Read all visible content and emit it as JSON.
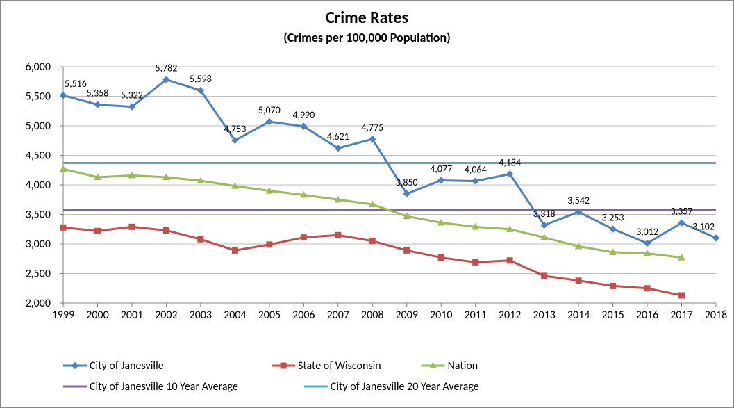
{
  "chart": {
    "type": "line",
    "title": "Crime Rates",
    "subtitle": "(Crimes per 100,000 Population)",
    "title_fontsize": 24,
    "subtitle_fontsize": 18,
    "background_color": "#ffffff",
    "border_color": "#888888",
    "grid_color": "#bfbfbf",
    "axis_line_color": "#808080",
    "tick_label_fontsize": 16,
    "tick_label_color": "#000000",
    "data_label_fontsize": 14,
    "data_label_color": "#000000",
    "xlim": [
      "1999",
      "2018"
    ],
    "ylim": [
      2000,
      6000
    ],
    "ytick_step": 500,
    "yticks": [
      2000,
      2500,
      3000,
      3500,
      4000,
      4500,
      5000,
      5500,
      6000
    ],
    "ytick_labels": [
      "2,000",
      "2,500",
      "3,000",
      "3,500",
      "4,000",
      "4,500",
      "5,000",
      "5,500",
      "6,000"
    ],
    "categories": [
      "1999",
      "2000",
      "2001",
      "2002",
      "2003",
      "2004",
      "2005",
      "2006",
      "2007",
      "2008",
      "2009",
      "2010",
      "2011",
      "2012",
      "2013",
      "2014",
      "2015",
      "2016",
      "2017",
      "2018"
    ],
    "series": [
      {
        "name": "City of Janesville",
        "color": "#4f81bd",
        "line_width": 3,
        "marker": "diamond",
        "marker_size": 9,
        "show_labels": true,
        "values": [
          5516,
          5358,
          5322,
          5782,
          5598,
          4753,
          5070,
          4990,
          4621,
          4775,
          3850,
          4077,
          4064,
          4184,
          3318,
          3542,
          3253,
          3012,
          3357,
          3102
        ],
        "value_labels": [
          "5,516",
          "5,358",
          "5,322",
          "5,782",
          "5,598",
          "4,753",
          "5,070",
          "4,990",
          "4,621",
          "4,775",
          "3,850",
          "4,077",
          "4,064",
          "4,184",
          "3,318",
          "3,542",
          "3,253",
          "3,012",
          "3,357",
          "3,102"
        ]
      },
      {
        "name": "State of Wisconsin",
        "color": "#c0504d",
        "line_width": 3,
        "marker": "square",
        "marker_size": 8,
        "show_labels": false,
        "values": [
          3280,
          3220,
          3290,
          3230,
          3080,
          2890,
          2990,
          3110,
          3150,
          3050,
          2890,
          2770,
          2690,
          2720,
          2460,
          2380,
          2290,
          2250,
          2130,
          null
        ]
      },
      {
        "name": "Nation",
        "color": "#9bbb59",
        "line_width": 3,
        "marker": "triangle",
        "marker_size": 9,
        "show_labels": false,
        "values": [
          4270,
          4130,
          4160,
          4130,
          4070,
          3980,
          3900,
          3830,
          3750,
          3670,
          3470,
          3360,
          3290,
          3250,
          3110,
          2960,
          2860,
          2840,
          2770,
          null
        ]
      },
      {
        "name": "City of Janesville 10 Year Average",
        "color": "#8064a2",
        "line_width": 3,
        "marker": "none",
        "show_labels": false,
        "values": [
          3570,
          3570,
          3570,
          3570,
          3570,
          3570,
          3570,
          3570,
          3570,
          3570,
          3570,
          3570,
          3570,
          3570,
          3570,
          3570,
          3570,
          3570,
          3570,
          3570
        ]
      },
      {
        "name": "City of Janesville 20 Year Average",
        "color": "#4bacc6",
        "line_width": 3,
        "marker": "none",
        "show_labels": false,
        "values": [
          4370,
          4370,
          4370,
          4370,
          4370,
          4370,
          4370,
          4370,
          4370,
          4370,
          4370,
          4370,
          4370,
          4370,
          4370,
          4370,
          4370,
          4370,
          4370,
          4370
        ]
      }
    ],
    "legend": {
      "position": "bottom",
      "rows": [
        [
          "City of Janesville",
          "State of Wisconsin",
          "Nation"
        ],
        [
          "City of Janesville 10 Year Average",
          "City of Janesville 20 Year Average"
        ]
      ]
    }
  }
}
